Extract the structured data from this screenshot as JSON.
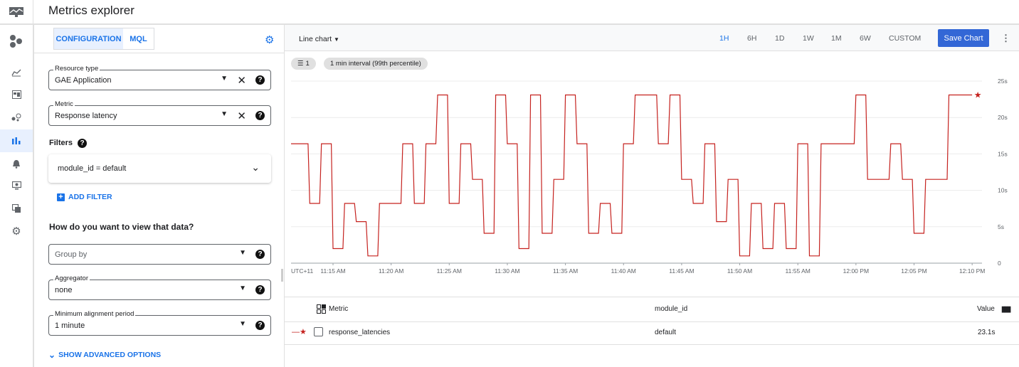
{
  "header": {
    "title": "Metrics explorer"
  },
  "nav": {
    "items": [
      "monitoring-logo",
      "overview",
      "dashboards",
      "services",
      "metrics-explorer",
      "alerting",
      "uptime-checks",
      "groups",
      "settings"
    ],
    "active": "metrics-explorer"
  },
  "config": {
    "tabs": [
      {
        "label": "CONFIGURATION",
        "active": true
      },
      {
        "label": "MQL",
        "active": false
      }
    ],
    "resource_type": {
      "label": "Resource type",
      "value": "GAE Application"
    },
    "metric": {
      "label": "Metric",
      "value": "Response latency"
    },
    "filters_label": "Filters",
    "filter": "module_id = default",
    "add_filter": "ADD FILTER",
    "view_heading": "How do you want to view that data?",
    "group_by": {
      "placeholder": "Group by"
    },
    "aggregator": {
      "label": "Aggregator",
      "value": "none"
    },
    "alignment": {
      "label": "Minimum alignment period",
      "value": "1 minute"
    },
    "advanced": "SHOW ADVANCED OPTIONS"
  },
  "toolbar": {
    "chart_type": "Line chart",
    "ranges": [
      "1H",
      "6H",
      "1D",
      "1W",
      "1M",
      "6W",
      "CUSTOM"
    ],
    "selected_range": "1H",
    "save_label": "Save Chart",
    "filter_count": "1",
    "interval_chip": "1 min interval (99th percentile)"
  },
  "chart_data": {
    "type": "line",
    "timezone_label": "UTC+11",
    "x_ticks": [
      "11:15 AM",
      "11:20 AM",
      "11:25 AM",
      "11:30 AM",
      "11:35 AM",
      "11:40 AM",
      "11:45 AM",
      "11:50 AM",
      "11:55 AM",
      "12:00 PM",
      "12:05 PM",
      "12:10 PM"
    ],
    "y_ticks": [
      "0",
      "5s",
      "10s",
      "15s",
      "20s",
      "25s"
    ],
    "ylim": [
      0,
      25
    ],
    "grid": true,
    "color": "#c5221f",
    "series": [
      {
        "name": "response_latencies",
        "points": [
          [
            "11:12",
            16.4
          ],
          [
            "11:13",
            8.2
          ],
          [
            "11:14",
            16.4
          ],
          [
            "11:15",
            2.0
          ],
          [
            "11:16",
            8.2
          ],
          [
            "11:17",
            5.7
          ],
          [
            "11:18",
            1.0
          ],
          [
            "11:19",
            8.2
          ],
          [
            "11:20",
            8.2
          ],
          [
            "11:21",
            16.4
          ],
          [
            "11:22",
            8.2
          ],
          [
            "11:23",
            16.4
          ],
          [
            "11:24",
            23.1
          ],
          [
            "11:25",
            8.2
          ],
          [
            "11:26",
            16.4
          ],
          [
            "11:27",
            11.5
          ],
          [
            "11:28",
            4.1
          ],
          [
            "11:29",
            23.1
          ],
          [
            "11:30",
            16.4
          ],
          [
            "11:31",
            2.0
          ],
          [
            "11:32",
            23.1
          ],
          [
            "11:33",
            4.1
          ],
          [
            "11:34",
            11.5
          ],
          [
            "11:35",
            23.1
          ],
          [
            "11:36",
            16.4
          ],
          [
            "11:37",
            4.1
          ],
          [
            "11:38",
            8.2
          ],
          [
            "11:39",
            4.1
          ],
          [
            "11:40",
            16.4
          ],
          [
            "11:41",
            23.1
          ],
          [
            "11:42",
            23.1
          ],
          [
            "11:43",
            16.4
          ],
          [
            "11:44",
            23.1
          ],
          [
            "11:45",
            11.5
          ],
          [
            "11:46",
            8.2
          ],
          [
            "11:47",
            16.4
          ],
          [
            "11:48",
            5.7
          ],
          [
            "11:49",
            11.5
          ],
          [
            "11:50",
            1.0
          ],
          [
            "11:51",
            8.2
          ],
          [
            "11:52",
            2.0
          ],
          [
            "11:53",
            8.2
          ],
          [
            "11:54",
            2.0
          ],
          [
            "11:55",
            16.4
          ],
          [
            "11:56",
            1.0
          ],
          [
            "11:57",
            16.4
          ],
          [
            "11:58",
            16.4
          ],
          [
            "11:59",
            16.4
          ],
          [
            "12:00",
            23.1
          ],
          [
            "12:01",
            11.5
          ],
          [
            "12:02",
            11.5
          ],
          [
            "12:03",
            16.4
          ],
          [
            "12:04",
            11.5
          ],
          [
            "12:05",
            4.1
          ],
          [
            "12:06",
            11.5
          ],
          [
            "12:07",
            11.5
          ],
          [
            "12:08",
            23.1
          ],
          [
            "12:09",
            23.1
          ],
          [
            "12:10",
            23.1
          ]
        ]
      }
    ]
  },
  "table": {
    "headers": [
      "Metric",
      "module_id",
      "Value"
    ],
    "rows": [
      {
        "metric": "response_latencies",
        "module_id": "default",
        "value": "23.1s"
      }
    ]
  }
}
